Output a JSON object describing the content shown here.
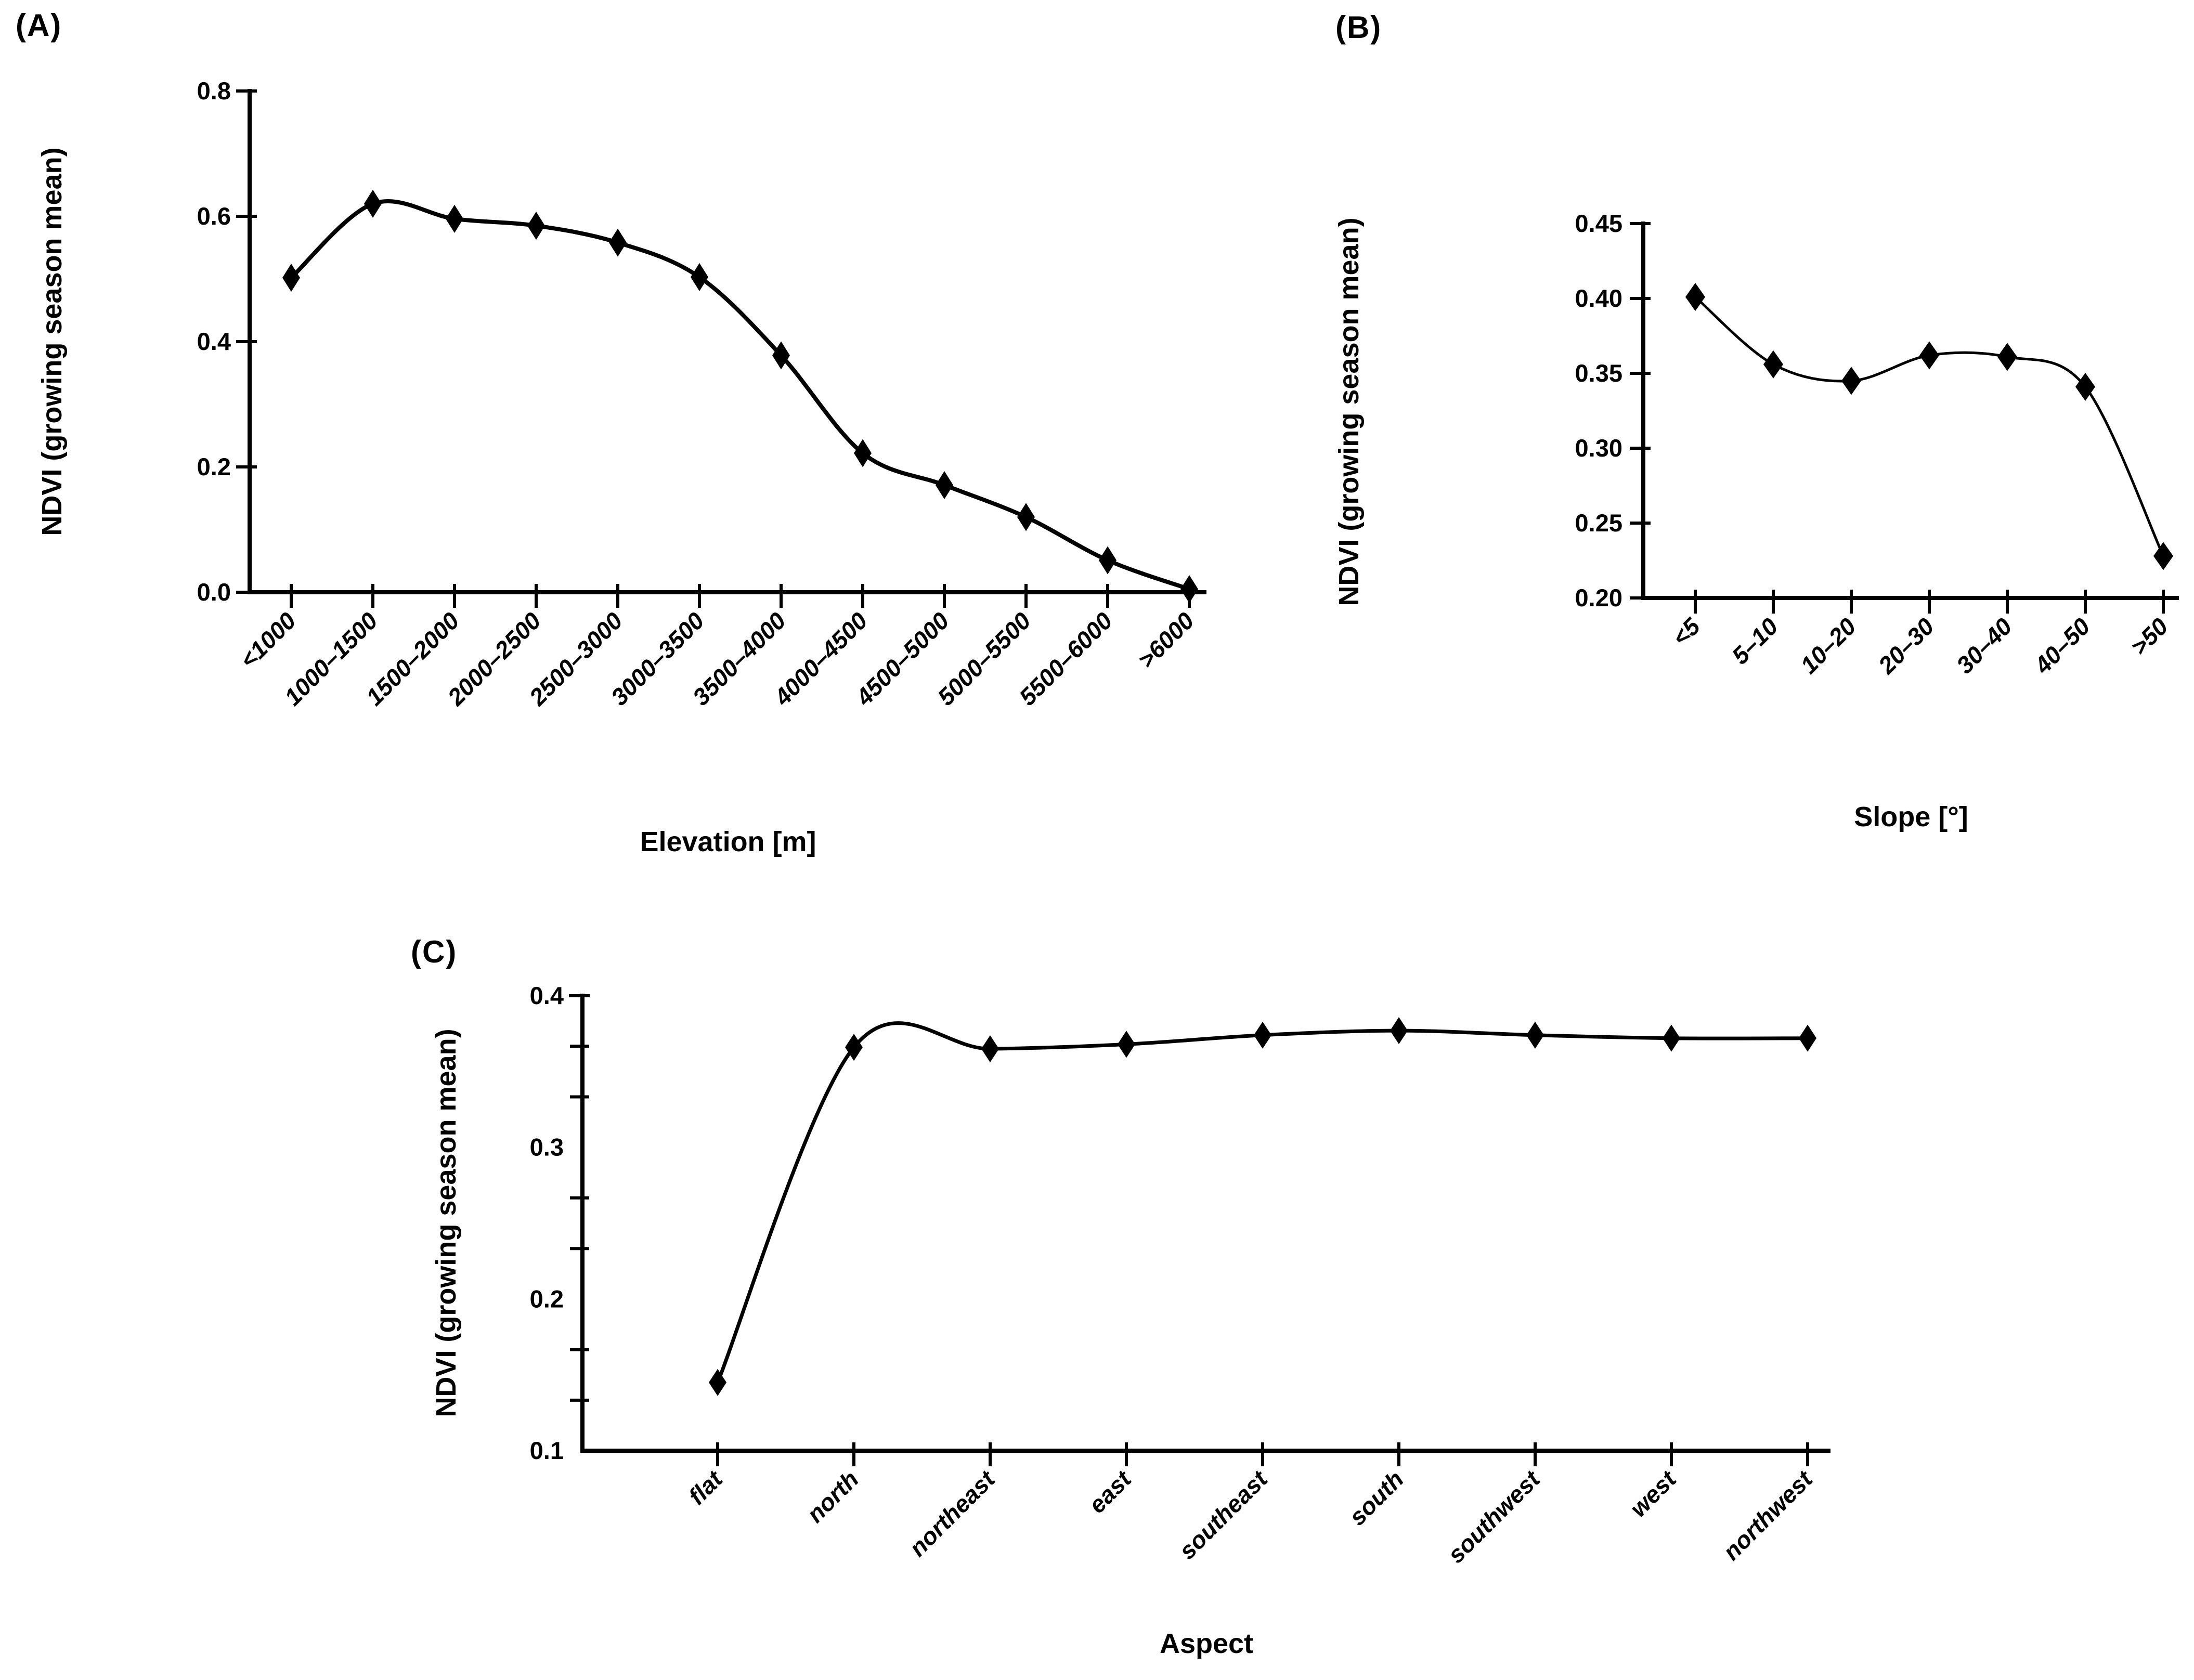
{
  "figure": {
    "background_color": "#ffffff",
    "text_color": "#000000",
    "line_color": "#000000",
    "marker_shape": "filled-diamond",
    "shared_ylabel": "NDVI (growing season mean)"
  },
  "chart_data": [
    {
      "id": "A",
      "panel_label": "(A)",
      "type": "line",
      "smoothed": true,
      "grid": false,
      "legend": "none",
      "xlabel": "Elevation [m]",
      "ylabel": "NDVI (growing season mean)",
      "categories": [
        "<1000",
        "1000–1500",
        "1500–2000",
        "2000–2500",
        "2500–3000",
        "3000–3500",
        "3500–4000",
        "4000–4500",
        "4500–5000",
        "5000–5500",
        "5500–6000",
        ">6000"
      ],
      "values": [
        0.502,
        0.62,
        0.596,
        0.585,
        0.558,
        0.503,
        0.378,
        0.222,
        0.171,
        0.12,
        0.051,
        0.005
      ],
      "ylim": [
        0.0,
        0.8
      ],
      "ytick_values": [
        0.0,
        0.2,
        0.4,
        0.6,
        0.8
      ],
      "ytick_labels": [
        "0.0",
        "0.2",
        "0.4",
        "0.6",
        "0.8"
      ],
      "y_minor_tick_values": []
    },
    {
      "id": "B",
      "panel_label": "(B)",
      "type": "line",
      "smoothed": true,
      "grid": false,
      "legend": "none",
      "xlabel": "Slope [°]",
      "ylabel": "NDVI (growing season mean)",
      "categories": [
        "<5",
        "5–10",
        "10–20",
        "20–30",
        "30–40",
        "40–50",
        ">50"
      ],
      "values": [
        0.401,
        0.356,
        0.345,
        0.362,
        0.361,
        0.341,
        0.228
      ],
      "ylim": [
        0.2,
        0.45
      ],
      "ytick_values": [
        0.2,
        0.25,
        0.3,
        0.35,
        0.4,
        0.45
      ],
      "ytick_labels": [
        "0.20",
        "0.25",
        "0.30",
        "0.35",
        "0.40",
        "0.45"
      ],
      "y_minor_tick_values": []
    },
    {
      "id": "C",
      "panel_label": "(C)",
      "type": "line",
      "smoothed": true,
      "grid": false,
      "legend": "none",
      "xlabel": "Aspect",
      "ylabel": "NDVI (growing season mean)",
      "categories": [
        "flat",
        "north",
        "northeast",
        "east",
        "southeast",
        "south",
        "southwest",
        "west",
        "northwest"
      ],
      "values": [
        0.145,
        0.366,
        0.365,
        0.368,
        0.374,
        0.377,
        0.374,
        0.372,
        0.372
      ],
      "ylim": [
        0.1,
        0.4
      ],
      "ytick_values": [
        0.1,
        0.2,
        0.3,
        0.4
      ],
      "ytick_labels": [
        "0.1",
        "0.2",
        "0.3",
        "0.4"
      ],
      "y_minor_tick_values": [
        0.1333,
        0.1667,
        0.2333,
        0.2667,
        0.3333,
        0.3667
      ]
    }
  ]
}
